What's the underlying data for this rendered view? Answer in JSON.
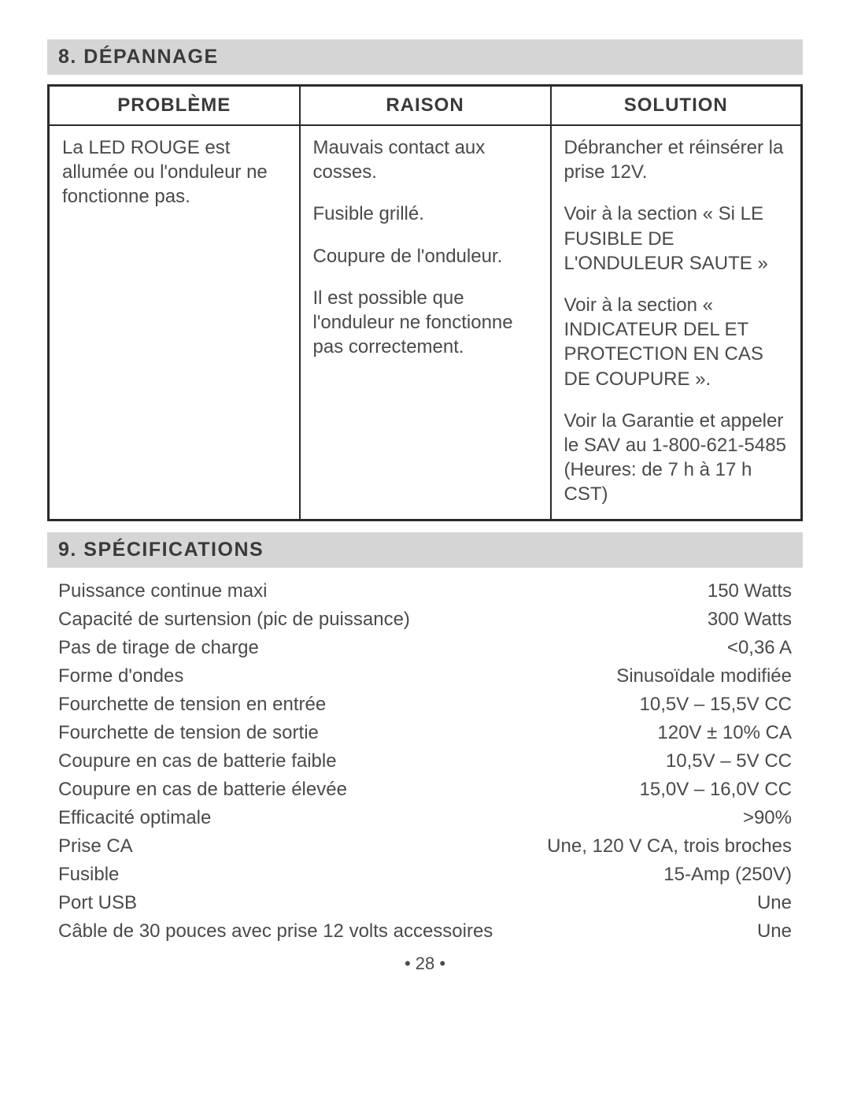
{
  "section8": {
    "header": "8.   DÉPANNAGE",
    "table": {
      "headers": [
        "PROBLÈME",
        "RAISON",
        "SOLUTION"
      ],
      "problem": "La LED ROUGE est allumée ou l'onduleur ne fonctionne pas.",
      "reasons": [
        "Mauvais contact aux cosses.",
        "Fusible grillé.",
        "Coupure de l'onduleur.",
        "Il est possible que l'onduleur ne fonctionne pas correctement."
      ],
      "solutions": [
        "Débrancher et réinsérer la prise 12V.",
        "Voir à la section « Si LE FUSIBLE DE L'ONDULEUR SAUTE »",
        "Voir à la section « INDICATEUR DEL ET PROTECTION EN CAS DE COUPURE ».",
        "Voir la Garantie et appeler le SAV au 1-800-621-5485 (Heures: de 7 h à 17 h CST)"
      ]
    }
  },
  "section9": {
    "header": "9.   SPÉCIFICATIONS",
    "rows": [
      {
        "label": "Puissance continue maxi",
        "value": "150 Watts"
      },
      {
        "label": "Capacité de surtension (pic de puissance)",
        "value": "300 Watts"
      },
      {
        "label": "Pas de tirage de charge",
        "value": "<0,36 A"
      },
      {
        "label": "Forme d'ondes",
        "value": "Sinusoïdale modifiée"
      },
      {
        "label": "Fourchette de tension en entrée",
        "value": "10,5V – 15,5V CC"
      },
      {
        "label": "Fourchette de tension de sortie",
        "value": "120V ± 10% CA"
      },
      {
        "label": "Coupure en cas de batterie faible",
        "value": "10,5V – 5V CC"
      },
      {
        "label": "Coupure en cas de batterie élevée",
        "value": "15,0V – 16,0V CC"
      },
      {
        "label": "Efficacité optimale",
        "value": ">90%"
      },
      {
        "label": "Prise CA",
        "value": "Une, 120 V CA, trois broches"
      },
      {
        "label": "Fusible",
        "value": "15-Amp (250V)"
      },
      {
        "label": "Port USB",
        "value": "Une"
      },
      {
        "label": "Câble de 30 pouces avec prise 12 volts accessoires",
        "value": "Une"
      }
    ]
  },
  "pageNumber": "• 28 •"
}
